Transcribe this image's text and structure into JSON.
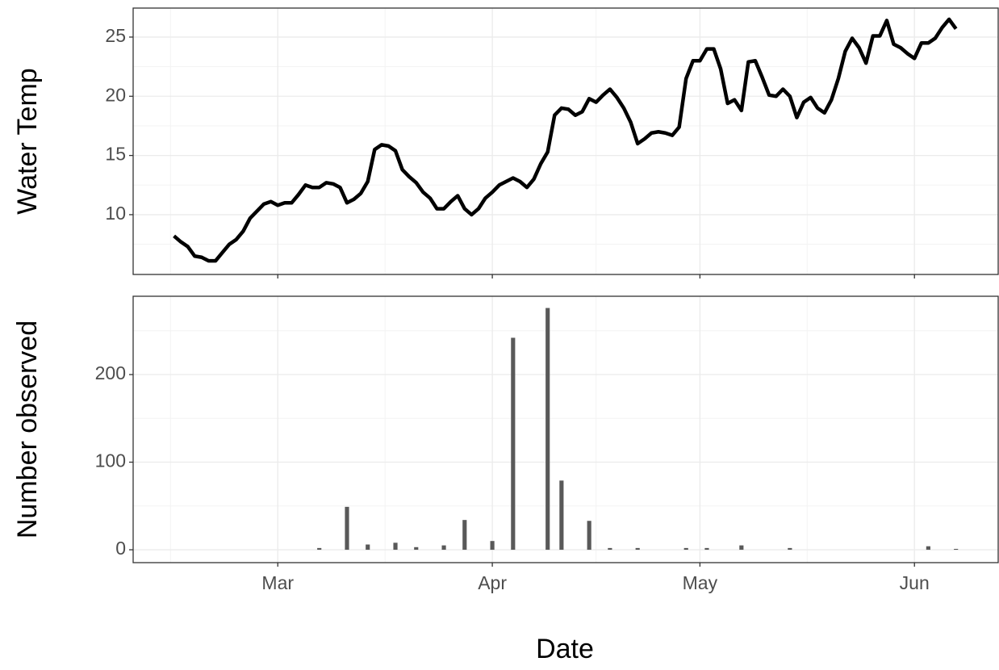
{
  "chart_data": [
    {
      "type": "line",
      "ylabel": "Water Temp",
      "color": "#000000",
      "x": [
        -15,
        -14,
        -13,
        -12,
        -11,
        -10,
        -9,
        -8,
        -7,
        -6,
        -5,
        -4,
        -2,
        -1,
        0,
        1,
        2,
        3,
        4,
        5,
        6,
        7,
        8,
        9,
        10,
        11,
        12,
        13,
        14,
        15,
        16,
        17,
        18,
        19,
        20,
        21,
        22,
        23,
        24,
        25,
        26,
        27,
        28,
        29,
        30,
        31,
        32,
        34,
        35,
        36,
        37,
        38,
        39,
        40,
        41,
        42,
        43,
        44,
        45,
        46,
        47,
        48,
        49,
        50,
        51,
        52,
        53,
        54,
        55,
        56,
        57,
        58,
        59,
        60,
        61,
        62,
        63,
        64,
        65,
        66,
        67,
        68,
        69,
        70,
        71,
        72,
        73,
        74,
        75,
        76,
        77,
        78,
        79,
        80,
        81,
        82,
        83,
        84,
        85,
        86,
        87,
        88,
        89,
        90,
        91,
        92,
        93,
        94,
        95,
        96,
        97,
        98
      ],
      "values": [
        8.2,
        7.7,
        7.3,
        6.5,
        6.4,
        6.1,
        6.1,
        6.8,
        7.5,
        7.9,
        8.6,
        9.7,
        10.9,
        11.1,
        10.8,
        11.0,
        11.0,
        11.7,
        12.5,
        12.3,
        12.3,
        12.7,
        12.6,
        12.3,
        11.0,
        11.3,
        11.8,
        12.8,
        15.5,
        15.9,
        15.8,
        15.4,
        13.8,
        13.2,
        12.7,
        11.9,
        11.4,
        10.5,
        10.5,
        11.1,
        11.6,
        10.5,
        10.0,
        10.5,
        11.4,
        11.9,
        12.5,
        13.1,
        12.8,
        12.3,
        13.0,
        14.3,
        15.3,
        18.4,
        19.0,
        18.9,
        18.4,
        18.7,
        19.8,
        19.5,
        20.1,
        20.6,
        19.9,
        19.0,
        17.8,
        16.0,
        16.4,
        16.9,
        17.0,
        16.9,
        16.7,
        17.4,
        21.5,
        23.0,
        23.0,
        24.0,
        24.0,
        22.3,
        19.4,
        19.7,
        18.8,
        22.9,
        23.0,
        21.6,
        20.1,
        20.0,
        20.6,
        20.0,
        18.2,
        19.5,
        19.9,
        19.0,
        18.6,
        19.7,
        21.5,
        23.8,
        24.9,
        24.1,
        22.8,
        25.1,
        25.1,
        26.4,
        24.4,
        24.1,
        23.6,
        23.2,
        24.5,
        24.5,
        24.9,
        25.8,
        26.5,
        25.7
      ],
      "xlim": [
        -20.9,
        104.1
      ],
      "ylim": [
        4.95,
        27.45
      ],
      "yticks": [
        10,
        15,
        20,
        25
      ],
      "grid": true
    },
    {
      "type": "bar",
      "ylabel": "Number observed",
      "xlabel": "Date",
      "color": "#595959",
      "x": [
        6,
        10,
        13,
        17,
        20,
        24,
        27,
        31,
        34,
        39,
        41,
        45,
        48,
        52,
        59,
        62,
        67,
        74,
        94,
        98
      ],
      "values": [
        2,
        49,
        6,
        8,
        3,
        5,
        34,
        10,
        242,
        276,
        79,
        33,
        2,
        2,
        2,
        2,
        5,
        2,
        4,
        1
      ],
      "xlim": [
        -20.9,
        104.1
      ],
      "ylim": [
        -14.7,
        289.4
      ],
      "yticks": [
        0,
        100,
        200
      ],
      "xticks": [
        {
          "value": 0,
          "label": "Mar"
        },
        {
          "value": 31,
          "label": "Apr"
        },
        {
          "value": 61,
          "label": "May"
        },
        {
          "value": 92,
          "label": "Jun"
        }
      ],
      "grid": true
    }
  ]
}
